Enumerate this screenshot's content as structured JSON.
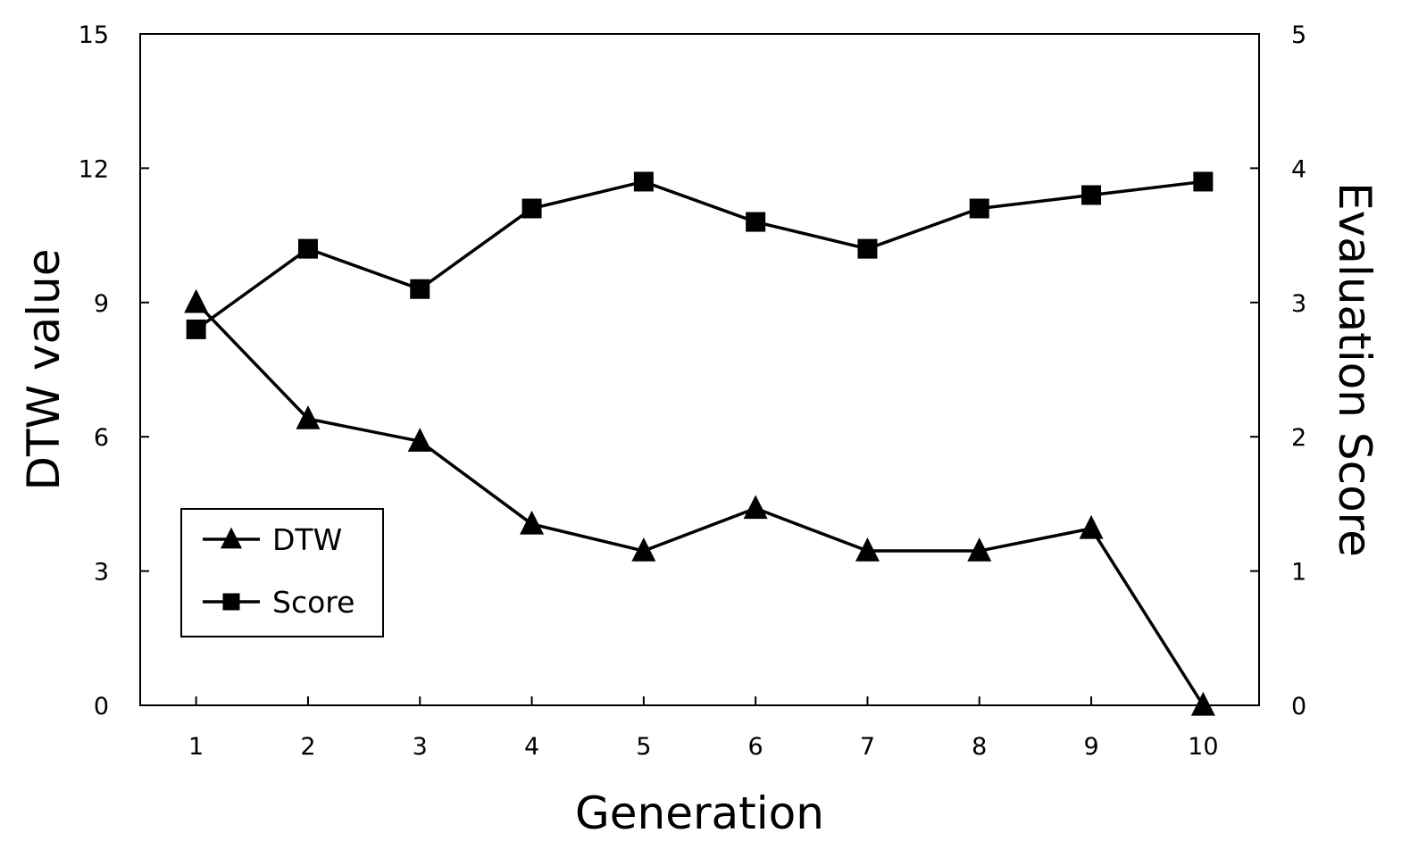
{
  "chart_data": {
    "type": "line",
    "title": "",
    "xlabel": "Generation",
    "ylabel": "DTW value",
    "y2label": "Evaluation Score",
    "x": [
      1,
      2,
      3,
      4,
      5,
      6,
      7,
      8,
      9,
      10
    ],
    "ylim": [
      0,
      15
    ],
    "y2lim": [
      0,
      5
    ],
    "yticks": [
      0,
      3,
      6,
      9,
      12,
      15
    ],
    "y2ticks": [
      0,
      1,
      2,
      3,
      4,
      5
    ],
    "grid": false,
    "legend_position": "bottom-left",
    "series": [
      {
        "name": "DTW",
        "axis": "left",
        "marker": "triangle",
        "values": [
          9.0,
          6.4,
          5.9,
          4.05,
          3.45,
          4.4,
          3.45,
          3.45,
          3.95,
          0.0
        ]
      },
      {
        "name": "Score",
        "axis": "right",
        "marker": "square",
        "values": [
          2.8,
          3.4,
          3.1,
          3.7,
          3.9,
          3.6,
          3.4,
          3.7,
          3.8,
          3.9
        ]
      }
    ]
  },
  "colors": {
    "line": "#000000",
    "background": "#ffffff"
  }
}
